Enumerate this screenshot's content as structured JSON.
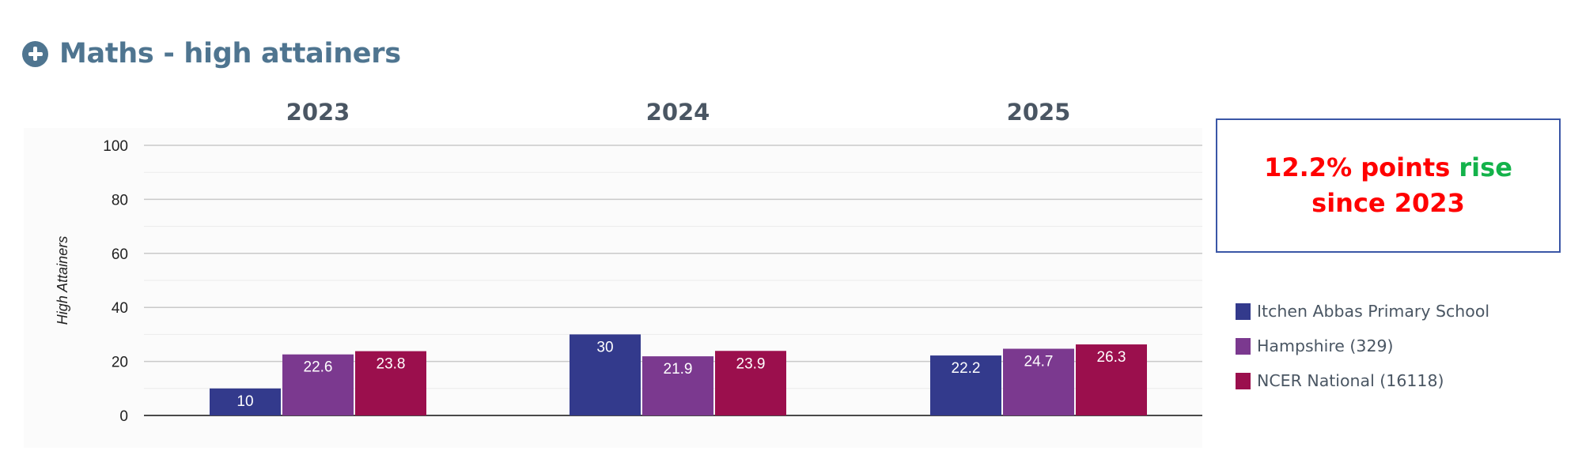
{
  "header": {
    "title": "Maths - high attainers",
    "icon": "plus-circle-icon"
  },
  "callout": {
    "part1": "12.2% points",
    "part2": "rise",
    "part3": "since 2023"
  },
  "colors": {
    "title": "#4f7590",
    "series": [
      "#333a8c",
      "#7b398f",
      "#9b0f4d"
    ],
    "callout_red": "#ff0000",
    "callout_green": "#13b24a"
  },
  "chart_data": {
    "type": "bar",
    "categories": [
      "2023",
      "2024",
      "2025"
    ],
    "series": [
      {
        "name": "Itchen Abbas Primary School",
        "values": [
          10,
          30,
          22.2
        ]
      },
      {
        "name": "Hampshire (329)",
        "values": [
          22.6,
          21.9,
          24.7
        ]
      },
      {
        "name": "NCER National (16118)",
        "values": [
          23.8,
          23.9,
          26.3
        ]
      }
    ],
    "ylabel": "High Attainers",
    "ylim": [
      0,
      100
    ],
    "yticks": [
      0,
      20,
      40,
      60,
      80,
      100
    ],
    "grid": true,
    "legend_position": "right"
  }
}
